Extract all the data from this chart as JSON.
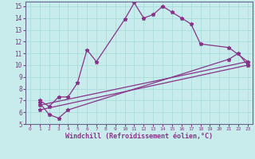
{
  "xlabel": "Windchill (Refroidissement éolien,°C)",
  "bg_color": "#c8ecec",
  "line_color": "#883388",
  "grid_color": "#aadddd",
  "xlim": [
    -0.5,
    23.5
  ],
  "ylim": [
    5,
    15.4
  ],
  "xticks": [
    0,
    1,
    2,
    3,
    4,
    5,
    6,
    7,
    8,
    9,
    10,
    11,
    12,
    13,
    14,
    15,
    16,
    17,
    18,
    19,
    20,
    21,
    22,
    23
  ],
  "yticks": [
    5,
    6,
    7,
    8,
    9,
    10,
    11,
    12,
    13,
    14,
    15
  ],
  "line1_x": [
    1,
    2,
    3,
    4,
    5,
    6,
    7,
    10,
    11,
    12,
    13,
    14,
    15,
    16,
    17,
    18,
    21,
    23
  ],
  "line1_y": [
    7.0,
    6.5,
    7.3,
    7.3,
    8.5,
    11.3,
    10.3,
    13.9,
    15.3,
    14.0,
    14.3,
    15.0,
    14.5,
    14.0,
    13.5,
    11.8,
    11.5,
    10.3
  ],
  "line2_x": [
    1,
    2,
    3,
    4,
    21,
    22,
    23
  ],
  "line2_y": [
    6.8,
    5.8,
    5.5,
    6.2,
    10.5,
    11.0,
    10.0
  ],
  "line3_x": [
    1,
    23
  ],
  "line3_y": [
    6.2,
    10.0
  ],
  "line4_x": [
    1,
    23
  ],
  "line4_y": [
    6.6,
    10.3
  ]
}
